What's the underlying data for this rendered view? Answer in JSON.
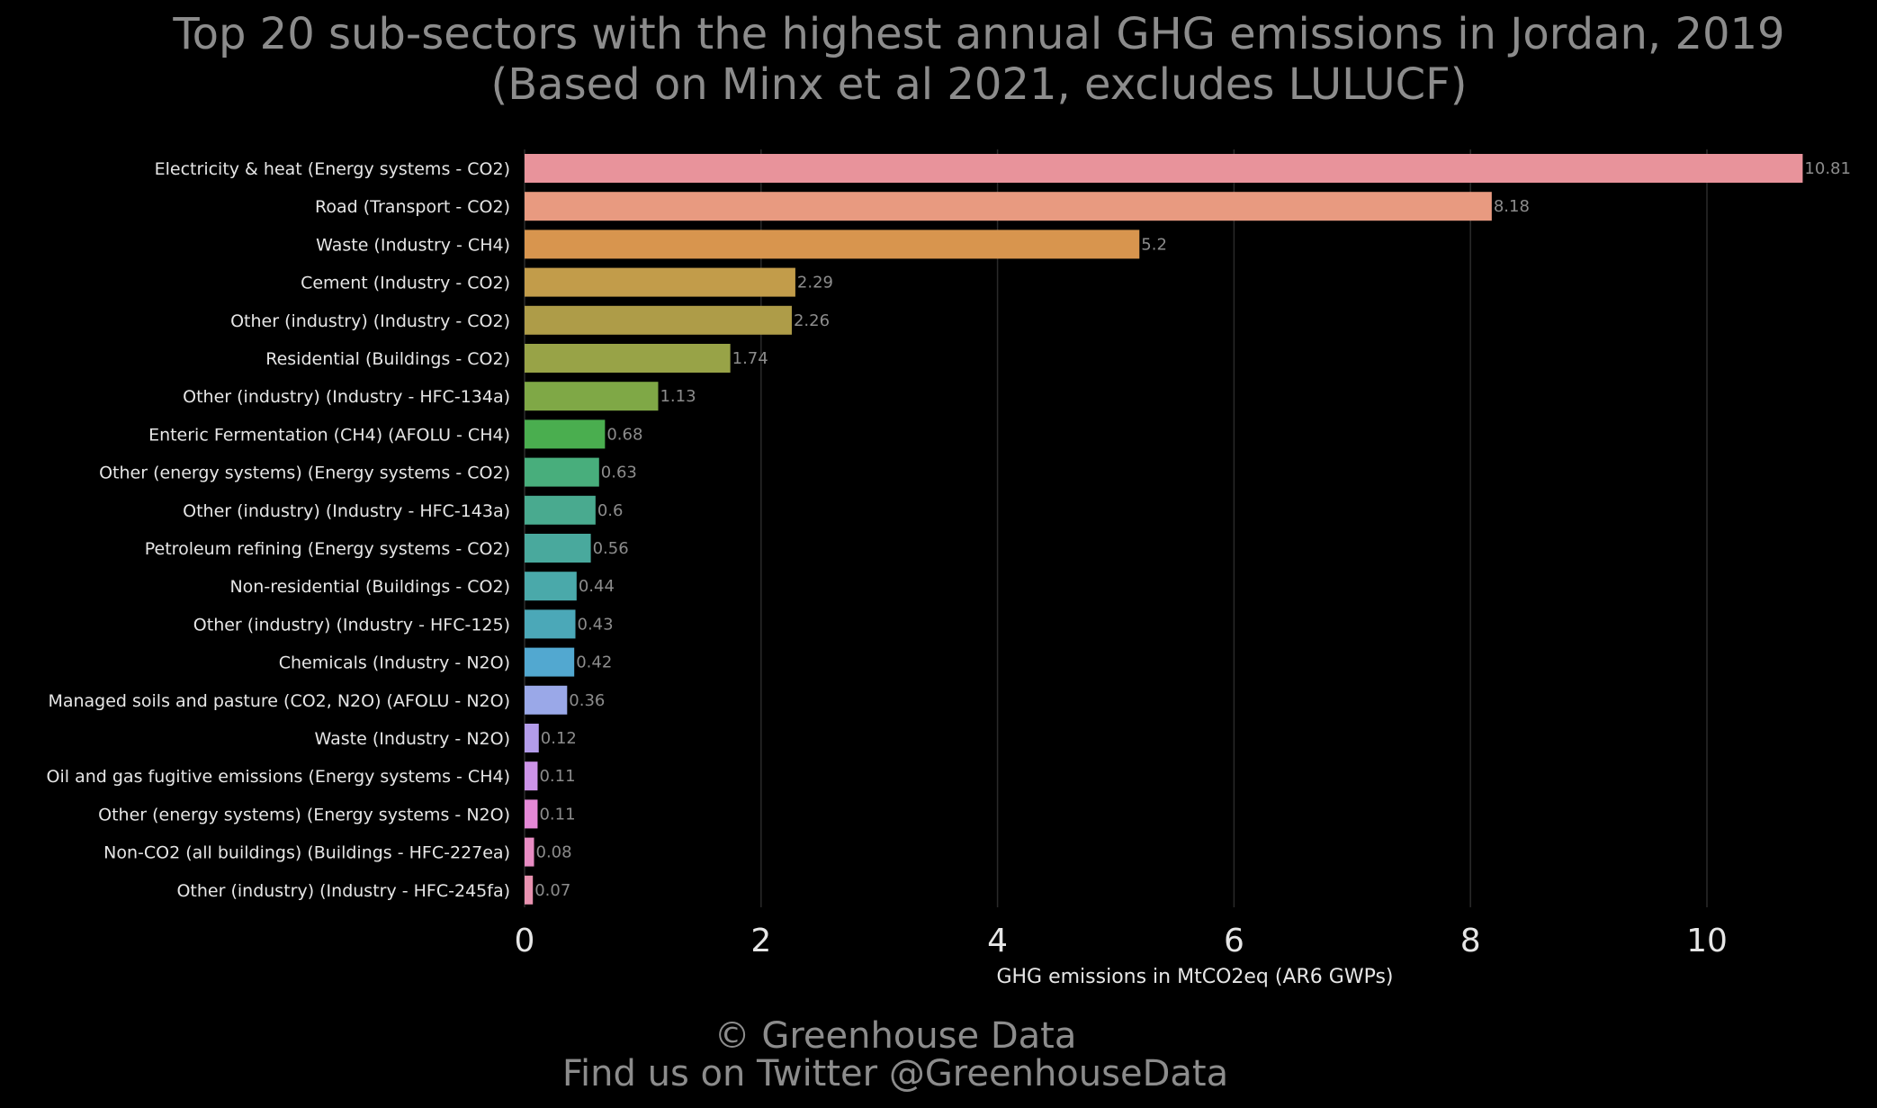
{
  "chart_data": {
    "type": "bar",
    "orientation": "horizontal",
    "title": "Top 20 sub-sectors with the highest annual GHG emissions in Jordan, 2019",
    "subtitle": "(Based on Minx et al 2021, excludes LULUCF)",
    "xlabel": "GHG emissions in MtCO2eq (AR6 GWPs)",
    "ylabel": "",
    "xlim": [
      0,
      11.2
    ],
    "xticks": [
      "0",
      "2",
      "4",
      "6",
      "8",
      "10"
    ],
    "grid": "vertical",
    "categories": [
      "Electricity & heat (Energy systems - CO2)",
      "Road (Transport - CO2)",
      "Waste (Industry - CH4)",
      "Cement (Industry - CO2)",
      "Other (industry) (Industry - CO2)",
      "Residential (Buildings - CO2)",
      "Other (industry) (Industry - HFC-134a)",
      "Enteric Fermentation (CH4) (AFOLU - CH4)",
      "Other (energy systems) (Energy systems - CO2)",
      "Other (industry) (Industry - HFC-143a)",
      "Petroleum refining (Energy systems - CO2)",
      "Non-residential (Buildings - CO2)",
      "Other (industry) (Industry - HFC-125)",
      "Chemicals (Industry - N2O)",
      "Managed soils and pasture (CO2, N2O) (AFOLU - N2O)",
      "Waste (Industry - N2O)",
      "Oil and gas fugitive emissions (Energy systems - CH4)",
      "Other (energy systems) (Energy systems - N2O)",
      "Non-CO2 (all buildings) (Buildings - HFC-227ea)",
      "Other (industry) (Industry - HFC-245fa)"
    ],
    "values": [
      10.81,
      8.18,
      5.2,
      2.29,
      2.26,
      1.74,
      1.13,
      0.68,
      0.63,
      0.6,
      0.56,
      0.44,
      0.43,
      0.42,
      0.36,
      0.12,
      0.11,
      0.11,
      0.08,
      0.07
    ],
    "value_labels": [
      "10.81",
      "8.18",
      "5.2",
      "2.29",
      "2.26",
      "1.74",
      "1.13",
      "0.68",
      "0.63",
      "0.6",
      "0.56",
      "0.44",
      "0.43",
      "0.42",
      "0.36",
      "0.12",
      "0.11",
      "0.11",
      "0.08",
      "0.07"
    ],
    "colors": [
      "#e8939b",
      "#e89a80",
      "#d8954e",
      "#c29c4a",
      "#ae9c48",
      "#98a347",
      "#7fa846",
      "#4aae4f",
      "#48ae7c",
      "#49aa8f",
      "#49a99d",
      "#4aa9aa",
      "#4ba8b8",
      "#52a8d0",
      "#9aa8e8",
      "#b39cea",
      "#cc93e8",
      "#e488d6",
      "#e88cc3",
      "#e892b0"
    ]
  },
  "footer": {
    "copyright": "© Greenhouse Data",
    "twitter": "Find us on Twitter @GreenhouseData"
  },
  "colors": {
    "background": "#000000",
    "title_text": "#8c8c8c",
    "label_text": "#e6e6e6",
    "value_label_text": "#8c8c8c",
    "gridline": "#2a2a2a"
  }
}
